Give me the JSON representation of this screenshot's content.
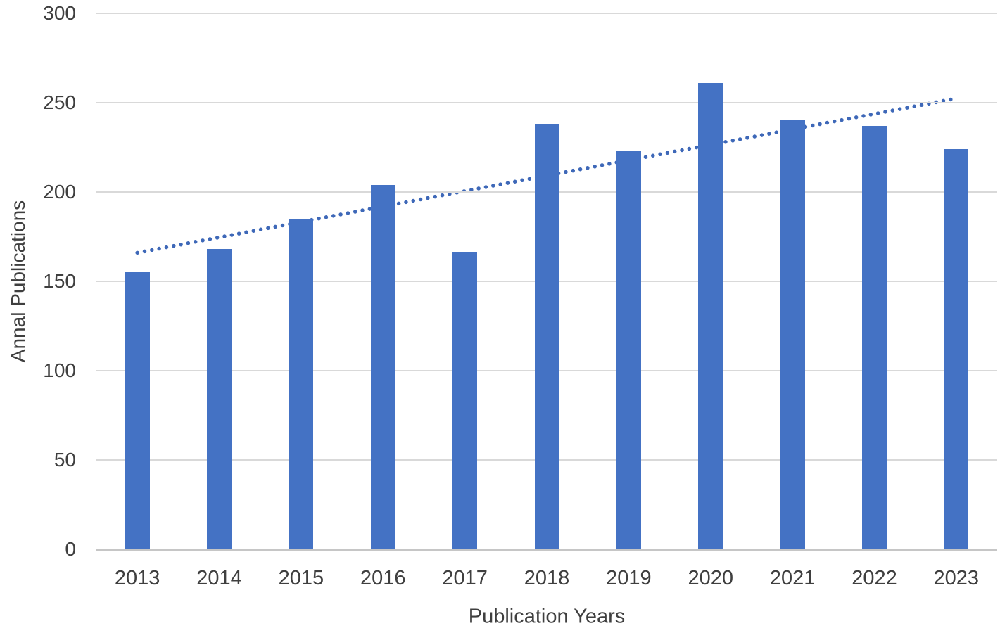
{
  "chart_data": {
    "type": "bar",
    "title": "",
    "xlabel": "Publication Years",
    "ylabel": "Annal Publications",
    "categories": [
      "2013",
      "2014",
      "2015",
      "2016",
      "2017",
      "2018",
      "2019",
      "2020",
      "2021",
      "2022",
      "2023"
    ],
    "values": [
      155,
      168,
      185,
      204,
      166,
      238,
      223,
      261,
      240,
      237,
      224
    ],
    "ylim": [
      0,
      300
    ],
    "yticks": [
      0,
      50,
      100,
      150,
      200,
      250,
      300
    ],
    "grid": "horizontal",
    "legend": "none",
    "trendline": {
      "type": "linear",
      "style": "dotted",
      "start_value": 166,
      "end_value": 252
    },
    "colors": {
      "bar": "#4472C4",
      "trendline": "#3E68B8",
      "gridline": "#D9D9D9",
      "baseline": "#C6C6C6",
      "text": "#3F3F3F"
    }
  }
}
